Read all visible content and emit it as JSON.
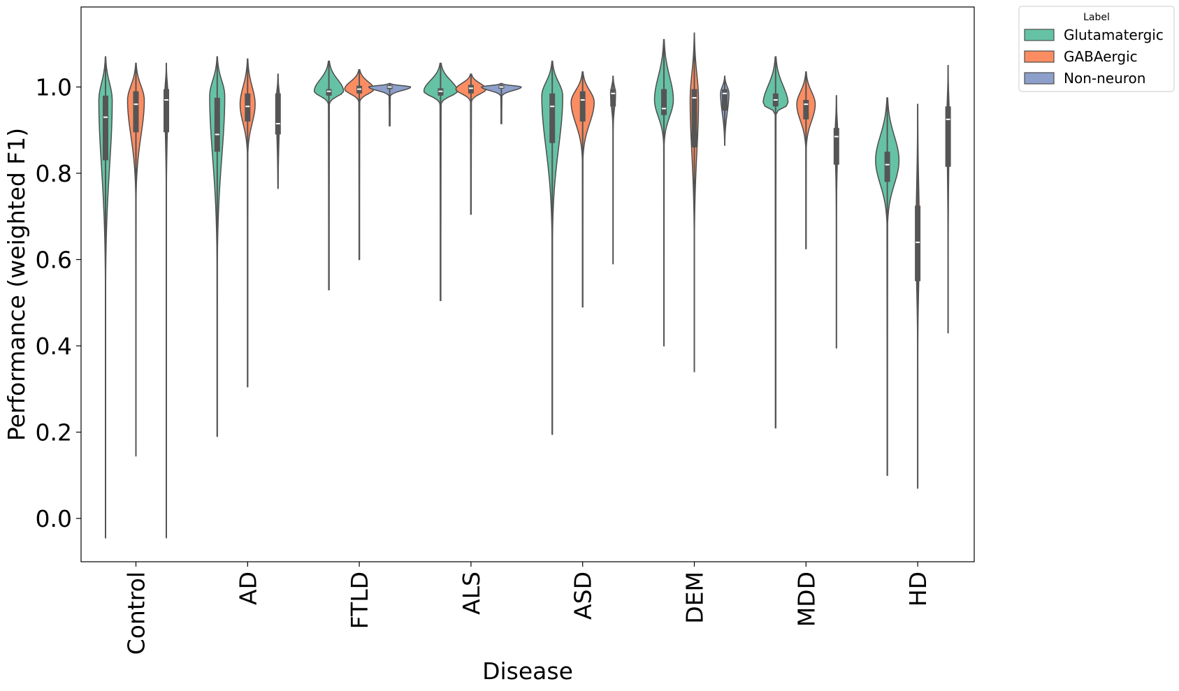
{
  "chart_data": {
    "type": "violin",
    "title": "",
    "xlabel": "Disease",
    "ylabel": "Performance (weighted F1)",
    "ylim": [
      -0.1,
      1.15
    ],
    "yticks": [
      0.0,
      0.2,
      0.4,
      0.6,
      0.8,
      1.0
    ],
    "ytick_labels": [
      "0.0",
      "0.2",
      "0.4",
      "0.6",
      "0.8",
      "1.0"
    ],
    "grid": false,
    "legend": {
      "title": "Label",
      "placement": "outside-top-right",
      "entries": [
        "Glutamatergic",
        "GABAergic",
        "Non-neuron"
      ]
    },
    "colors": {
      "Glutamatergic": "#66c2a5",
      "GABAergic": "#fc8d62",
      "Non-neuron": "#8da0cb",
      "outline": "#4d4d4d",
      "box": "#555555",
      "median": "#ffffff"
    },
    "categories": [
      "Control",
      "AD",
      "FTLD",
      "ALS",
      "ASD",
      "DEM",
      "MDD",
      "HD"
    ],
    "series": [
      {
        "name": "Glutamatergic",
        "stats": [
          {
            "min": -0.045,
            "q1": 0.83,
            "median": 0.93,
            "q3": 0.98,
            "max": 1.07,
            "mode": 0.97,
            "width": 0.32
          },
          {
            "min": 0.19,
            "q1": 0.85,
            "median": 0.89,
            "q3": 0.975,
            "max": 1.07,
            "mode": 0.98,
            "width": 0.36
          },
          {
            "min": 0.53,
            "q1": 0.98,
            "median": 0.99,
            "q3": 0.995,
            "max": 1.06,
            "mode": 0.99,
            "width": 0.7
          },
          {
            "min": 0.505,
            "q1": 0.98,
            "median": 0.99,
            "q3": 0.997,
            "max": 1.055,
            "mode": 0.99,
            "width": 0.8
          },
          {
            "min": 0.195,
            "q1": 0.87,
            "median": 0.955,
            "q3": 0.985,
            "max": 1.06,
            "mode": 0.98,
            "width": 0.5
          },
          {
            "min": 0.4,
            "q1": 0.935,
            "median": 0.95,
            "q3": 0.995,
            "max": 1.11,
            "mode": 0.97,
            "width": 0.45
          },
          {
            "min": 0.21,
            "q1": 0.955,
            "median": 0.97,
            "q3": 0.985,
            "max": 1.07,
            "mode": 0.96,
            "width": 0.6
          },
          {
            "min": 0.1,
            "q1": 0.78,
            "median": 0.82,
            "q3": 0.85,
            "max": 0.975,
            "mode": 0.83,
            "width": 0.56
          }
        ]
      },
      {
        "name": "GABAergic",
        "stats": [
          {
            "min": 0.145,
            "q1": 0.895,
            "median": 0.96,
            "q3": 0.99,
            "max": 1.055,
            "mode": 0.97,
            "width": 0.4
          },
          {
            "min": 0.305,
            "q1": 0.92,
            "median": 0.955,
            "q3": 0.985,
            "max": 1.065,
            "mode": 0.96,
            "width": 0.36
          },
          {
            "min": 0.6,
            "q1": 0.985,
            "median": 0.995,
            "q3": 1.003,
            "max": 1.04,
            "mode": 0.995,
            "width": 0.7
          },
          {
            "min": 0.705,
            "q1": 0.985,
            "median": 0.997,
            "q3": 1.005,
            "max": 1.03,
            "mode": 0.995,
            "width": 0.72
          },
          {
            "min": 0.49,
            "q1": 0.92,
            "median": 0.97,
            "q3": 0.99,
            "max": 1.035,
            "mode": 0.965,
            "width": 0.55
          },
          {
            "min": 0.34,
            "q1": 0.86,
            "median": 0.975,
            "q3": 0.995,
            "max": 1.125,
            "mode": 0.97,
            "width": 0.2
          },
          {
            "min": 0.625,
            "q1": 0.925,
            "median": 0.96,
            "q3": 0.97,
            "max": 1.035,
            "mode": 0.96,
            "width": 0.44
          },
          {
            "min": 0.07,
            "q1": 0.55,
            "median": 0.64,
            "q3": 0.725,
            "max": 0.96,
            "mode": 0.65,
            "width": 0.08
          }
        ]
      },
      {
        "name": "Non-neuron",
        "stats": [
          {
            "min": -0.045,
            "q1": 0.895,
            "median": 0.97,
            "q3": 0.995,
            "max": 1.055,
            "mode": 0.985,
            "width": 0.07
          },
          {
            "min": 0.765,
            "q1": 0.89,
            "median": 0.915,
            "q3": 0.985,
            "max": 1.03,
            "mode": 0.97,
            "width": 0.08
          },
          {
            "min": 0.91,
            "q1": 0.995,
            "median": 1.0,
            "q3": 1.004,
            "max": 1.008,
            "mode": 1.0,
            "width": 1.0
          },
          {
            "min": 0.915,
            "q1": 0.996,
            "median": 1.0,
            "q3": 1.004,
            "max": 1.008,
            "mode": 1.0,
            "width": 0.95
          },
          {
            "min": 0.59,
            "q1": 0.955,
            "median": 0.985,
            "q3": 0.995,
            "max": 1.025,
            "mode": 0.985,
            "width": 0.12
          },
          {
            "min": 0.865,
            "q1": 0.945,
            "median": 0.985,
            "q3": 0.995,
            "max": 1.025,
            "mode": 0.985,
            "width": 0.2
          },
          {
            "min": 0.395,
            "q1": 0.82,
            "median": 0.885,
            "q3": 0.905,
            "max": 0.98,
            "mode": 0.89,
            "width": 0.06
          },
          {
            "min": 0.43,
            "q1": 0.815,
            "median": 0.925,
            "q3": 0.955,
            "max": 1.05,
            "mode": 0.94,
            "width": 0.05
          }
        ]
      }
    ]
  }
}
